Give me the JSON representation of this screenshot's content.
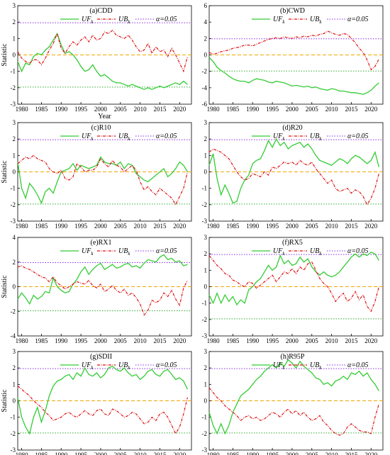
{
  "figure": {
    "legend_labels": {
      "uf": "UF",
      "ub": "UB",
      "sub": "k",
      "alpha": "α=0.05"
    },
    "colors": {
      "uf": "#33cc33",
      "ub": "#dd1111",
      "alpha": "#8a2be2",
      "zero": "#f0a500",
      "neg": "#33aa33"
    },
    "year_ticks": [
      1980,
      1985,
      1990,
      1995,
      2000,
      2005,
      2010,
      2015,
      2020
    ],
    "years_first": 1979,
    "years_last": 2022
  },
  "chart_data": [
    {
      "type": "line",
      "title": "(a)CDD",
      "xlabel": "Year",
      "ylabel": "Statistic",
      "xlim": [
        1979,
        2023
      ],
      "ylim": [
        -3,
        3
      ],
      "yticks": [
        -3,
        -2,
        -1,
        0,
        1,
        2,
        3
      ],
      "reference_lines": {
        "upper": 1.96,
        "lower": -1.96,
        "zero": 0
      },
      "series": [
        {
          "name": "UF",
          "values": [
            -0.4,
            -1.0,
            -0.5,
            -0.6,
            -0.1,
            0.1,
            0.0,
            0.3,
            0.5,
            0.9,
            1.3,
            0.6,
            0.1,
            0.2,
            0.0,
            -0.3,
            -0.7,
            -1.0,
            -0.9,
            -0.6,
            -1.0,
            -1.3,
            -1.2,
            -1.4,
            -1.6,
            -1.7,
            -1.7,
            -1.8,
            -1.9,
            -1.8,
            -1.9,
            -2.0,
            -2.1,
            -2.0,
            -2.1,
            -2.0,
            -1.9,
            -2.0,
            -1.9,
            -1.8,
            -1.7,
            -1.8,
            -1.6,
            -1.8
          ]
        },
        {
          "name": "UB",
          "values": [
            0.2,
            -0.2,
            -0.4,
            -0.5,
            -0.3,
            -0.3,
            -0.6,
            -0.2,
            0.3,
            0.7,
            1.3,
            0.4,
            0.1,
            0.5,
            0.8,
            0.6,
            0.9,
            1.1,
            0.8,
            1.2,
            0.9,
            1.0,
            1.4,
            1.3,
            1.5,
            1.2,
            1.1,
            1.0,
            1.2,
            0.9,
            0.5,
            0.2,
            0.3,
            0.7,
            0.1,
            0.5,
            0.2,
            0.3,
            -0.1,
            0.4,
            0.0,
            -0.5,
            -1.0,
            -0.1
          ]
        }
      ]
    },
    {
      "type": "line",
      "title": "(b)CWD",
      "xlabel": "",
      "ylabel": "",
      "xlim": [
        1979,
        2023
      ],
      "ylim": [
        -6,
        6
      ],
      "yticks": [
        -6,
        -4,
        -2,
        0,
        2,
        4,
        6
      ],
      "reference_lines": {
        "upper": 1.96,
        "lower": -1.96,
        "zero": 0
      },
      "series": [
        {
          "name": "UF",
          "values": [
            -0.3,
            -0.8,
            -1.5,
            -1.9,
            -2.2,
            -2.6,
            -2.9,
            -3.1,
            -3.2,
            -3.2,
            -3.4,
            -3.1,
            -2.9,
            -3.0,
            -3.1,
            -3.3,
            -3.4,
            -3.2,
            -3.3,
            -3.4,
            -3.6,
            -3.8,
            -3.7,
            -3.8,
            -3.9,
            -3.8,
            -4.0,
            -3.9,
            -4.1,
            -4.2,
            -4.3,
            -4.1,
            -4.2,
            -4.4,
            -4.4,
            -4.5,
            -4.6,
            -4.6,
            -4.7,
            -4.8,
            -4.6,
            -4.3,
            -3.8,
            -3.4
          ]
        },
        {
          "name": "UB",
          "values": [
            0.3,
            0.1,
            0.2,
            0.4,
            0.5,
            0.6,
            0.8,
            0.9,
            1.0,
            1.2,
            1.2,
            1.1,
            1.3,
            1.5,
            1.7,
            1.9,
            2.0,
            2.1,
            2.0,
            2.2,
            2.1,
            2.0,
            2.2,
            2.1,
            2.3,
            2.2,
            2.4,
            2.3,
            2.5,
            2.6,
            2.9,
            2.7,
            2.5,
            2.4,
            2.6,
            2.5,
            2.0,
            1.5,
            0.8,
            0.3,
            -0.6,
            -1.8,
            -1.4,
            -0.5
          ]
        }
      ]
    },
    {
      "type": "line",
      "title": "(c)R10",
      "xlabel": "",
      "ylabel": "Statistic",
      "xlim": [
        1979,
        2023
      ],
      "ylim": [
        -3,
        3
      ],
      "yticks": [
        -3,
        -2,
        -1,
        0,
        1,
        2,
        3
      ],
      "reference_lines": {
        "upper": 1.96,
        "lower": -1.96,
        "zero": 0
      },
      "series": [
        {
          "name": "UF",
          "values": [
            0.6,
            -1.0,
            -1.6,
            -0.7,
            -1.0,
            -1.4,
            -1.9,
            -1.2,
            -1.0,
            -1.3,
            -0.6,
            0.0,
            0.1,
            0.2,
            0.5,
            0.1,
            0.4,
            0.3,
            0.2,
            0.3,
            0.4,
            0.9,
            0.6,
            0.5,
            0.5,
            0.4,
            0.6,
            0.2,
            0.5,
            0.4,
            -0.1,
            -0.3,
            -0.5,
            -0.6,
            -0.4,
            -0.2,
            0.0,
            0.2,
            -0.3,
            -0.1,
            0.2,
            0.6,
            0.4,
            0.0
          ]
        },
        {
          "name": "UB",
          "values": [
            0.5,
            0.7,
            0.9,
            0.8,
            1.0,
            0.8,
            0.7,
            0.6,
            0.2,
            0.0,
            -0.1,
            0.1,
            -0.4,
            -0.5,
            -0.3,
            0.5,
            0.3,
            0.0,
            0.1,
            0.1,
            0.3,
            0.8,
            0.5,
            0.3,
            0.7,
            0.4,
            0.3,
            0.0,
            0.2,
            0.4,
            0.1,
            -0.6,
            -1.1,
            -0.9,
            -1.2,
            -1.4,
            -1.0,
            -1.2,
            -1.4,
            -1.6,
            -2.0,
            -1.5,
            -1.0,
            0.0
          ]
        }
      ]
    },
    {
      "type": "line",
      "title": "(d)R20",
      "xlabel": "",
      "ylabel": "",
      "xlim": [
        1979,
        2023
      ],
      "ylim": [
        -3,
        3
      ],
      "yticks": [
        -3,
        -2,
        -1,
        0,
        1,
        2,
        3
      ],
      "reference_lines": {
        "upper": 1.96,
        "lower": -1.96,
        "zero": 0
      },
      "series": [
        {
          "name": "UF",
          "values": [
            0.4,
            1.1,
            -0.4,
            -1.4,
            -0.8,
            -1.3,
            -1.9,
            -1.8,
            -1.0,
            -0.5,
            -0.2,
            0.5,
            0.7,
            0.8,
            1.3,
            1.9,
            1.5,
            2.0,
            1.6,
            1.8,
            1.4,
            1.6,
            1.7,
            1.8,
            1.5,
            1.7,
            1.4,
            1.0,
            0.7,
            0.6,
            0.5,
            0.4,
            0.6,
            0.8,
            0.7,
            0.5,
            0.8,
            1.0,
            0.9,
            0.7,
            0.5,
            0.7,
            1.2,
            0.3
          ]
        },
        {
          "name": "UB",
          "values": [
            1.2,
            1.4,
            1.3,
            1.2,
            1.0,
            0.8,
            0.4,
            0.0,
            -0.3,
            -0.5,
            -0.4,
            -0.1,
            -0.2,
            -0.3,
            0.0,
            -0.2,
            0.3,
            0.2,
            0.4,
            0.6,
            0.5,
            0.6,
            0.4,
            0.7,
            0.5,
            0.4,
            0.6,
            0.2,
            -0.1,
            -0.4,
            -0.7,
            -0.5,
            -1.0,
            -1.2,
            -1.1,
            -1.0,
            -1.3,
            -1.1,
            -1.2,
            -1.5,
            -2.0,
            -1.6,
            -1.0,
            -0.1
          ]
        }
      ]
    },
    {
      "type": "line",
      "title": "(e)RX1",
      "xlabel": "",
      "ylabel": "Statistic",
      "xlim": [
        1979,
        2023
      ],
      "ylim": [
        -4,
        4
      ],
      "yticks": [
        -4,
        -2,
        0,
        2,
        4
      ],
      "reference_lines": {
        "upper": 1.96,
        "lower": -1.96,
        "zero": 0
      },
      "series": [
        {
          "name": "UF",
          "values": [
            -1.0,
            -0.5,
            -0.9,
            -1.4,
            -0.7,
            -1.0,
            -0.8,
            -0.4,
            -0.5,
            0.7,
            0.0,
            -0.3,
            -0.5,
            -0.4,
            0.2,
            0.6,
            1.2,
            1.6,
            1.0,
            1.4,
            1.7,
            1.9,
            1.4,
            1.6,
            1.8,
            1.5,
            1.6,
            1.8,
            1.9,
            1.6,
            1.7,
            1.5,
            1.9,
            2.2,
            2.1,
            2.0,
            2.4,
            2.6,
            2.2,
            2.3,
            2.0,
            2.1,
            1.7,
            1.8
          ]
        },
        {
          "name": "UB",
          "values": [
            1.6,
            1.7,
            1.5,
            1.4,
            1.2,
            1.0,
            0.8,
            0.7,
            0.4,
            0.8,
            0.3,
            0.1,
            -0.2,
            0.0,
            0.2,
            0.4,
            0.3,
            0.2,
            0.5,
            0.1,
            -0.1,
            0.2,
            -0.4,
            -0.2,
            0.1,
            -0.3,
            -0.5,
            -0.2,
            -0.7,
            -0.5,
            -0.9,
            -1.4,
            -2.3,
            -1.9,
            -1.1,
            -1.3,
            -1.1,
            -0.5,
            -0.8,
            -0.3,
            -1.0,
            -1.5,
            -0.1,
            0.5
          ]
        }
      ]
    },
    {
      "type": "line",
      "title": "(f)RX5",
      "xlabel": "",
      "ylabel": "",
      "xlim": [
        1979,
        2023
      ],
      "ylim": [
        -3,
        3
      ],
      "yticks": [
        -3,
        -2,
        -1,
        0,
        1,
        2,
        3
      ],
      "reference_lines": {
        "upper": 1.96,
        "lower": -1.96,
        "zero": 0
      },
      "series": [
        {
          "name": "UF",
          "values": [
            -0.5,
            -1.0,
            -0.4,
            -1.0,
            -0.5,
            -0.9,
            -0.6,
            -1.1,
            -0.8,
            -1.0,
            -0.2,
            0.0,
            0.3,
            0.5,
            0.9,
            1.3,
            1.0,
            1.2,
            1.9,
            1.4,
            1.6,
            1.3,
            1.4,
            1.8,
            1.5,
            1.7,
            1.2,
            0.9,
            0.7,
            0.9,
            0.7,
            0.6,
            0.7,
            0.9,
            1.2,
            1.5,
            1.8,
            2.0,
            1.8,
            2.0,
            1.9,
            2.1,
            2.0,
            1.6
          ]
        },
        {
          "name": "UB",
          "values": [
            1.9,
            1.6,
            1.3,
            1.1,
            0.8,
            0.7,
            0.4,
            0.3,
            0.1,
            0.0,
            0.3,
            0.2,
            -0.1,
            0.1,
            0.3,
            0.5,
            0.7,
            0.3,
            0.6,
            0.9,
            0.8,
            1.1,
            0.8,
            1.2,
            1.0,
            1.4,
            1.5,
            1.0,
            0.5,
            0.2,
            0.0,
            -0.4,
            -0.9,
            -0.6,
            -0.4,
            -0.9,
            -0.7,
            -0.3,
            -0.8,
            -0.5,
            -1.2,
            -1.5,
            -0.9,
            0.0
          ]
        }
      ]
    },
    {
      "type": "line",
      "title": "(g)SDII",
      "xlabel": "",
      "ylabel": "Statistic",
      "xlim": [
        1979,
        2023
      ],
      "ylim": [
        -3,
        3
      ],
      "yticks": [
        -3,
        -2,
        -1,
        0,
        1,
        2,
        3
      ],
      "reference_lines": {
        "upper": 1.96,
        "lower": -1.96,
        "zero": 0
      },
      "series": [
        {
          "name": "UF",
          "values": [
            0.2,
            -1.0,
            -1.6,
            -2.0,
            -1.0,
            -0.4,
            -1.3,
            -0.6,
            0.3,
            0.9,
            1.2,
            1.3,
            1.5,
            1.6,
            1.3,
            1.7,
            1.5,
            2.0,
            1.6,
            1.5,
            1.7,
            1.4,
            1.6,
            2.0,
            2.1,
            1.9,
            1.8,
            2.0,
            1.7,
            1.5,
            1.6,
            1.3,
            1.5,
            1.8,
            1.9,
            1.6,
            1.5,
            1.8,
            1.9,
            1.6,
            1.3,
            1.4,
            1.2,
            0.7
          ]
        },
        {
          "name": "UB",
          "values": [
            0.9,
            0.7,
            0.5,
            0.3,
            0.0,
            -0.2,
            -0.4,
            -0.7,
            -0.9,
            -1.2,
            -1.1,
            -1.0,
            -0.8,
            -0.7,
            -0.9,
            -1.0,
            -0.8,
            -0.6,
            -0.8,
            -0.9,
            -0.6,
            -0.5,
            -0.8,
            -0.9,
            -0.5,
            -0.6,
            -0.8,
            -1.0,
            -0.9,
            -0.7,
            -0.8,
            -1.1,
            -1.4,
            -1.3,
            -1.0,
            -1.2,
            -0.8,
            -0.7,
            -1.0,
            -1.5,
            -2.0,
            -1.6,
            -0.8,
            0.2
          ]
        }
      ]
    },
    {
      "type": "line",
      "title": "(h)R95P",
      "xlabel": "",
      "ylabel": "",
      "xlim": [
        1979,
        2023
      ],
      "ylim": [
        -3,
        3
      ],
      "yticks": [
        -3,
        -2,
        -1,
        0,
        1,
        2,
        3
      ],
      "reference_lines": {
        "upper": 1.96,
        "lower": -1.96,
        "zero": 0
      },
      "series": [
        {
          "name": "UF",
          "values": [
            -0.7,
            -1.5,
            -2.0,
            -1.4,
            -2.0,
            -1.5,
            -0.7,
            -0.2,
            0.3,
            0.5,
            0.7,
            1.0,
            1.3,
            1.5,
            1.8,
            2.0,
            2.2,
            2.0,
            2.3,
            2.1,
            2.5,
            2.3,
            2.0,
            2.4,
            2.1,
            1.9,
            1.7,
            1.4,
            1.3,
            1.0,
            1.1,
            0.9,
            1.2,
            1.3,
            1.5,
            1.3,
            1.7,
            1.6,
            1.8,
            1.5,
            1.7,
            1.3,
            1.0,
            0.6
          ]
        },
        {
          "name": "UB",
          "values": [
            0.8,
            0.5,
            0.2,
            0.0,
            -0.3,
            -0.5,
            -0.7,
            -0.9,
            -1.2,
            -1.0,
            -0.9,
            -1.1,
            -1.0,
            -1.2,
            -1.1,
            -0.9,
            -0.7,
            -0.8,
            -1.0,
            -0.7,
            -0.5,
            -0.8,
            -0.6,
            -0.9,
            -0.7,
            -1.0,
            -1.2,
            -1.1,
            -0.9,
            -1.3,
            -1.5,
            -1.8,
            -2.0,
            -2.1,
            -2.0,
            -1.6,
            -1.4,
            -1.6,
            -1.8,
            -1.9,
            -1.9,
            -2.0,
            -1.0,
            -0.2
          ]
        }
      ]
    }
  ]
}
